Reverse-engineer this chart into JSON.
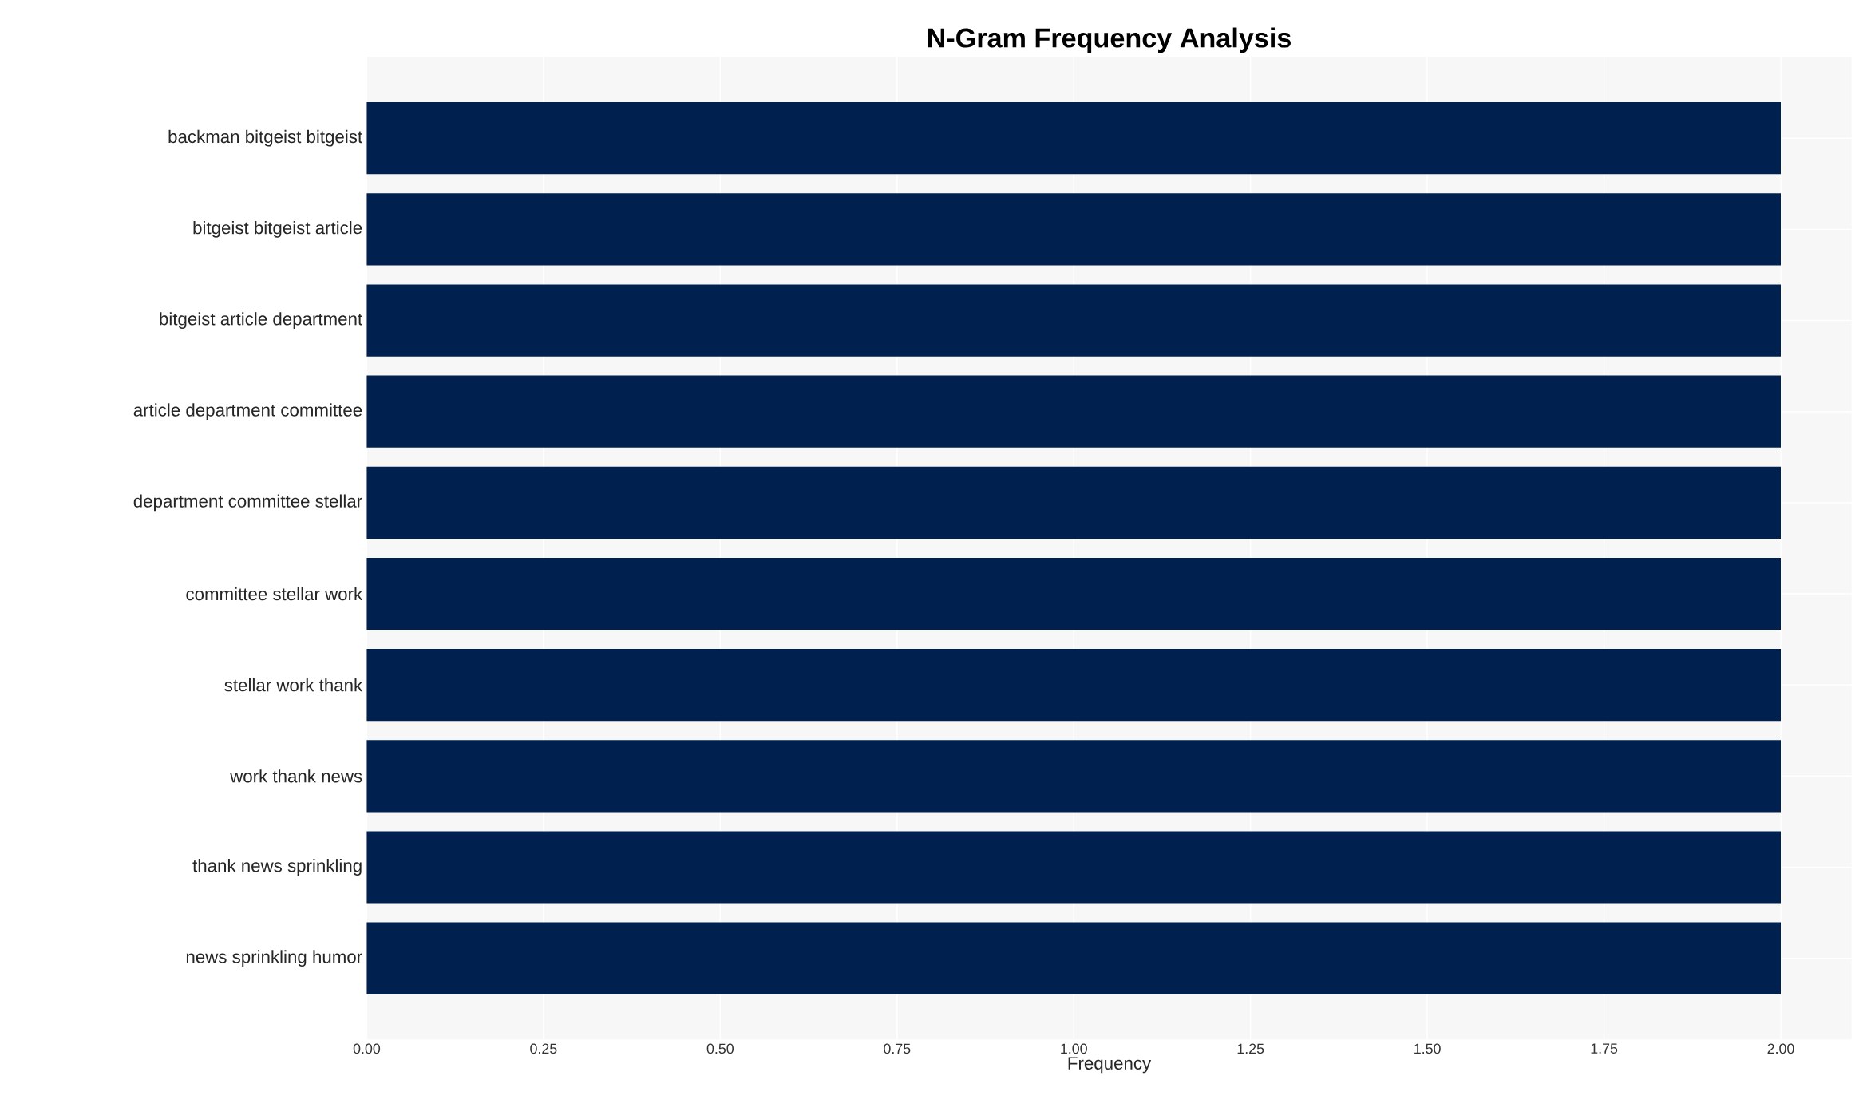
{
  "chart_data": {
    "type": "bar",
    "orientation": "horizontal",
    "title": "N-Gram Frequency Analysis",
    "xlabel": "Frequency",
    "categories": [
      "backman bitgeist bitgeist",
      "bitgeist bitgeist article",
      "bitgeist article department",
      "article department committee",
      "department committee stellar",
      "committee stellar work",
      "stellar work thank",
      "work thank news",
      "thank news sprinkling",
      "news sprinkling humor"
    ],
    "values": [
      2,
      2,
      2,
      2,
      2,
      2,
      2,
      2,
      2,
      2
    ],
    "color": "#002050",
    "xlim": [
      0,
      2.1
    ],
    "xticks": [
      {
        "value": 0,
        "label": "0.00"
      },
      {
        "value": 0.25,
        "label": "0.25"
      },
      {
        "value": 0.5,
        "label": "0.50"
      },
      {
        "value": 0.75,
        "label": "0.75"
      },
      {
        "value": 1,
        "label": "1.00"
      },
      {
        "value": 1.25,
        "label": "1.25"
      },
      {
        "value": 1.5,
        "label": "1.50"
      },
      {
        "value": 1.75,
        "label": "1.75"
      },
      {
        "value": 2,
        "label": "2.00"
      }
    ],
    "grid": true
  }
}
